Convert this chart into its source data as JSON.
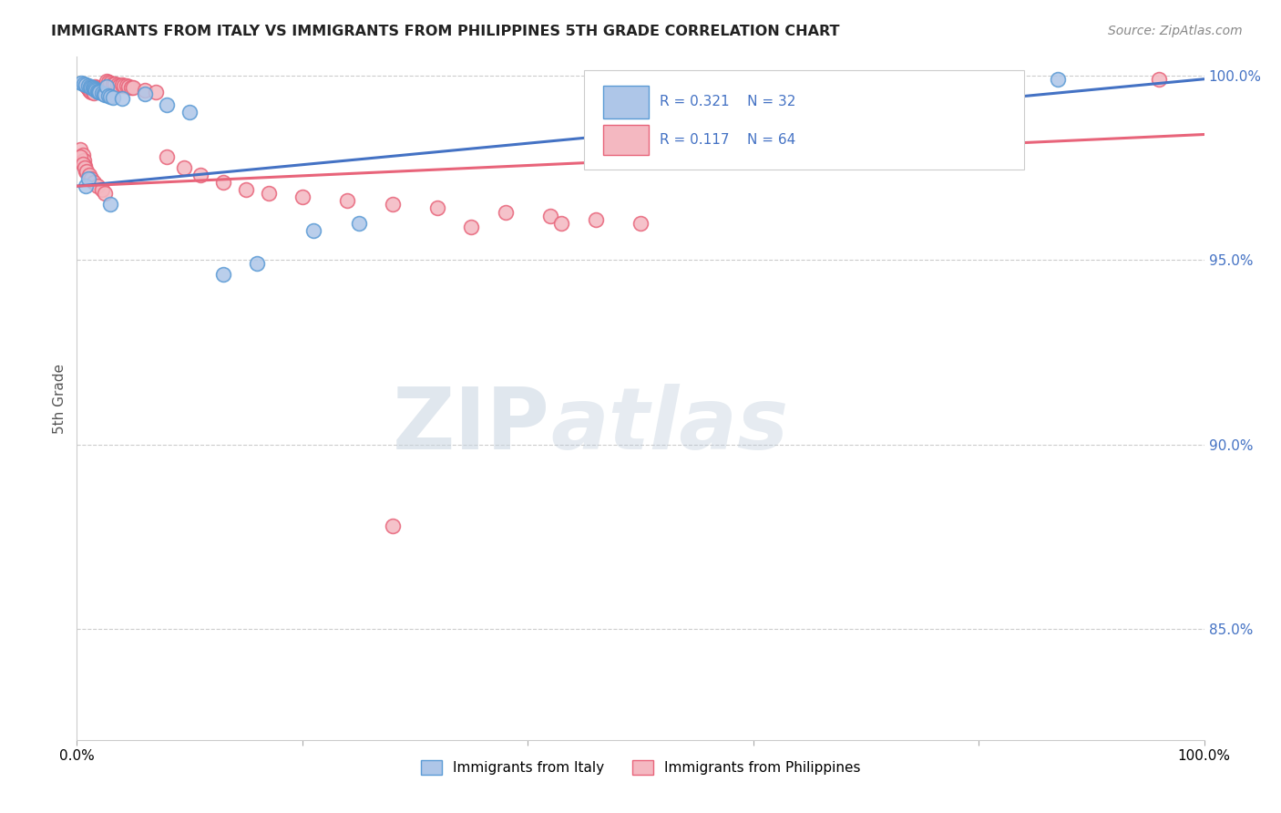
{
  "title": "IMMIGRANTS FROM ITALY VS IMMIGRANTS FROM PHILIPPINES 5TH GRADE CORRELATION CHART",
  "source": "Source: ZipAtlas.com",
  "ylabel": "5th Grade",
  "xlim": [
    0.0,
    1.0
  ],
  "ylim": [
    0.82,
    1.005
  ],
  "ytick_positions": [
    0.85,
    0.9,
    0.95,
    1.0
  ],
  "ytick_labels": [
    "85.0%",
    "90.0%",
    "95.0%",
    "100.0%"
  ],
  "italy_color": "#aec6e8",
  "italy_edge_color": "#5b9bd5",
  "philippines_color": "#f4b8c1",
  "philippines_edge_color": "#e8647a",
  "italy_line_color": "#4472c4",
  "philippines_line_color": "#e8647a",
  "italy_scatter_x": [
    0.004,
    0.006,
    0.008,
    0.01,
    0.012,
    0.013,
    0.014,
    0.015,
    0.016,
    0.017,
    0.018,
    0.019,
    0.02,
    0.022,
    0.024,
    0.025,
    0.026,
    0.028,
    0.03,
    0.032,
    0.04,
    0.06,
    0.08,
    0.1,
    0.13,
    0.16,
    0.21,
    0.25,
    0.03,
    0.008,
    0.01,
    0.87
  ],
  "italy_scatter_y": [
    0.998,
    0.9978,
    0.9975,
    0.9972,
    0.997,
    0.9968,
    0.9966,
    0.9965,
    0.9962,
    0.996,
    0.9958,
    0.9956,
    0.9955,
    0.9953,
    0.995,
    0.9948,
    0.997,
    0.9945,
    0.9942,
    0.994,
    0.9938,
    0.995,
    0.992,
    0.99,
    0.946,
    0.949,
    0.958,
    0.96,
    0.965,
    0.97,
    0.972,
    0.999
  ],
  "philippines_scatter_x": [
    0.003,
    0.005,
    0.006,
    0.007,
    0.008,
    0.009,
    0.01,
    0.011,
    0.012,
    0.013,
    0.014,
    0.015,
    0.016,
    0.017,
    0.018,
    0.019,
    0.02,
    0.021,
    0.022,
    0.024,
    0.025,
    0.026,
    0.028,
    0.03,
    0.032,
    0.034,
    0.036,
    0.038,
    0.04,
    0.042,
    0.044,
    0.046,
    0.048,
    0.05,
    0.06,
    0.07,
    0.08,
    0.095,
    0.11,
    0.13,
    0.15,
    0.17,
    0.2,
    0.24,
    0.28,
    0.32,
    0.38,
    0.42,
    0.46,
    0.5,
    0.003,
    0.005,
    0.007,
    0.009,
    0.011,
    0.013,
    0.015,
    0.018,
    0.022,
    0.025,
    0.43,
    0.35,
    0.28,
    0.96
  ],
  "philippines_scatter_y": [
    0.98,
    0.9785,
    0.977,
    0.9755,
    0.974,
    0.997,
    0.9965,
    0.996,
    0.9958,
    0.9956,
    0.9954,
    0.9952,
    0.997,
    0.9968,
    0.9966,
    0.9964,
    0.9962,
    0.996,
    0.9958,
    0.9955,
    0.9953,
    0.9985,
    0.9982,
    0.9979,
    0.9977,
    0.9976,
    0.9975,
    0.9973,
    0.9975,
    0.9973,
    0.9971,
    0.997,
    0.9968,
    0.9967,
    0.996,
    0.9955,
    0.978,
    0.975,
    0.973,
    0.971,
    0.969,
    0.968,
    0.967,
    0.966,
    0.965,
    0.964,
    0.963,
    0.962,
    0.961,
    0.96,
    0.978,
    0.976,
    0.975,
    0.974,
    0.973,
    0.972,
    0.971,
    0.97,
    0.969,
    0.968,
    0.96,
    0.959,
    0.878,
    0.999
  ]
}
